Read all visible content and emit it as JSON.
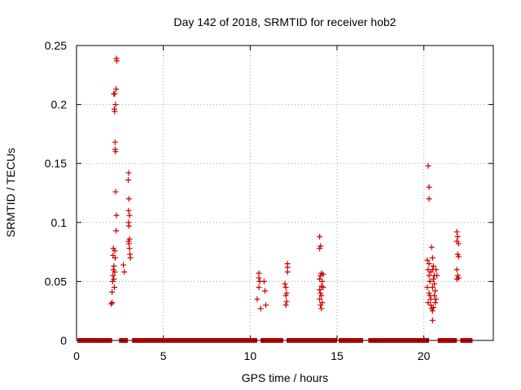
{
  "chart_data": {
    "type": "scatter",
    "title": "Day 142 of 2018, SRMTID for receiver hob2",
    "xlabel": "GPS time / hours",
    "ylabel": "SRMTID / TECUs",
    "xlim": [
      0,
      24
    ],
    "ylim": [
      0,
      0.25
    ],
    "x_ticks": [
      0,
      5,
      10,
      15,
      20
    ],
    "x_tick_labels": [
      "0",
      "5",
      "10",
      "15",
      "20"
    ],
    "y_ticks": [
      0,
      0.05,
      0.1,
      0.15,
      0.2,
      0.25
    ],
    "y_tick_labels": [
      "0",
      "0.05",
      "0.1",
      "0.15",
      "0.2",
      "0.25"
    ],
    "grid": true,
    "marker": "+",
    "color": "#cc0000",
    "zero_segments": [
      [
        0.05,
        2.05
      ],
      [
        2.45,
        2.95
      ],
      [
        3.2,
        10.4
      ],
      [
        10.6,
        11.9
      ],
      [
        12.1,
        15.0
      ],
      [
        15.1,
        16.5
      ],
      [
        16.8,
        20.3
      ],
      [
        20.8,
        21.9
      ],
      [
        22.1,
        22.8
      ]
    ],
    "points": [
      [
        2.0,
        0.031
      ],
      [
        2.05,
        0.041
      ],
      [
        2.08,
        0.05
      ],
      [
        2.1,
        0.055
      ],
      [
        2.12,
        0.06
      ],
      [
        2.15,
        0.052
      ],
      [
        2.1,
        0.072
      ],
      [
        2.12,
        0.078
      ],
      [
        2.18,
        0.045
      ],
      [
        2.2,
        0.058
      ],
      [
        2.05,
        0.032
      ],
      [
        2.15,
        0.063
      ],
      [
        2.22,
        0.07
      ],
      [
        2.15,
        0.209
      ],
      [
        2.2,
        0.209
      ],
      [
        2.18,
        0.196
      ],
      [
        2.2,
        0.194
      ],
      [
        2.22,
        0.168
      ],
      [
        2.25,
        0.16
      ],
      [
        2.22,
        0.162
      ],
      [
        2.25,
        0.126
      ],
      [
        2.3,
        0.106
      ],
      [
        2.28,
        0.093
      ],
      [
        2.3,
        0.239
      ],
      [
        2.32,
        0.237
      ],
      [
        2.28,
        0.213
      ],
      [
        2.25,
        0.2
      ],
      [
        2.2,
        0.076
      ],
      [
        2.7,
        0.064
      ],
      [
        2.75,
        0.058
      ],
      [
        3.0,
        0.142
      ],
      [
        2.98,
        0.136
      ],
      [
        3.02,
        0.12
      ],
      [
        3.0,
        0.11
      ],
      [
        3.05,
        0.106
      ],
      [
        3.0,
        0.1
      ],
      [
        3.02,
        0.097
      ],
      [
        3.05,
        0.086
      ],
      [
        3.0,
        0.084
      ],
      [
        3.02,
        0.082
      ],
      [
        3.05,
        0.078
      ],
      [
        3.08,
        0.073
      ],
      [
        3.1,
        0.07
      ],
      [
        10.4,
        0.035
      ],
      [
        10.5,
        0.057
      ],
      [
        10.5,
        0.053
      ],
      [
        10.55,
        0.05
      ],
      [
        10.5,
        0.045
      ],
      [
        10.6,
        0.027
      ],
      [
        10.8,
        0.05
      ],
      [
        10.85,
        0.042
      ],
      [
        10.9,
        0.03
      ],
      [
        12.0,
        0.048
      ],
      [
        12.05,
        0.045
      ],
      [
        12.1,
        0.04
      ],
      [
        12.05,
        0.038
      ],
      [
        12.1,
        0.033
      ],
      [
        12.05,
        0.03
      ],
      [
        12.15,
        0.065
      ],
      [
        12.15,
        0.062
      ],
      [
        12.15,
        0.058
      ],
      [
        14.0,
        0.088
      ],
      [
        14.05,
        0.08
      ],
      [
        14.0,
        0.078
      ],
      [
        14.1,
        0.057
      ],
      [
        14.05,
        0.055
      ],
      [
        14.15,
        0.05
      ],
      [
        14.1,
        0.046
      ],
      [
        14.0,
        0.043
      ],
      [
        14.2,
        0.056
      ],
      [
        14.05,
        0.04
      ],
      [
        14.1,
        0.038
      ],
      [
        14.0,
        0.035
      ],
      [
        14.15,
        0.032
      ],
      [
        14.05,
        0.03
      ],
      [
        14.1,
        0.027
      ],
      [
        14.2,
        0.045
      ],
      [
        14.0,
        0.052
      ],
      [
        20.25,
        0.148
      ],
      [
        20.3,
        0.13
      ],
      [
        20.3,
        0.12
      ],
      [
        20.2,
        0.068
      ],
      [
        20.25,
        0.06
      ],
      [
        20.3,
        0.055
      ],
      [
        20.35,
        0.05
      ],
      [
        20.2,
        0.045
      ],
      [
        20.3,
        0.04
      ],
      [
        20.35,
        0.038
      ],
      [
        20.4,
        0.035
      ],
      [
        20.25,
        0.032
      ],
      [
        20.4,
        0.03
      ],
      [
        20.45,
        0.027
      ],
      [
        20.5,
        0.025
      ],
      [
        20.45,
        0.079
      ],
      [
        20.5,
        0.07
      ],
      [
        20.55,
        0.063
      ],
      [
        20.5,
        0.06
      ],
      [
        20.6,
        0.055
      ],
      [
        20.55,
        0.052
      ],
      [
        20.6,
        0.048
      ],
      [
        20.5,
        0.045
      ],
      [
        20.65,
        0.042
      ],
      [
        20.6,
        0.038
      ],
      [
        20.7,
        0.035
      ],
      [
        20.65,
        0.032
      ],
      [
        20.55,
        0.028
      ],
      [
        20.5,
        0.017
      ],
      [
        20.7,
        0.06
      ],
      [
        20.75,
        0.055
      ],
      [
        20.3,
        0.065
      ],
      [
        20.4,
        0.058
      ],
      [
        20.35,
        0.05
      ],
      [
        21.9,
        0.092
      ],
      [
        21.95,
        0.088
      ],
      [
        21.9,
        0.084
      ],
      [
        22.0,
        0.082
      ],
      [
        21.95,
        0.073
      ],
      [
        22.0,
        0.071
      ],
      [
        21.9,
        0.06
      ],
      [
        21.95,
        0.055
      ],
      [
        22.0,
        0.053
      ],
      [
        21.9,
        0.052
      ]
    ]
  }
}
